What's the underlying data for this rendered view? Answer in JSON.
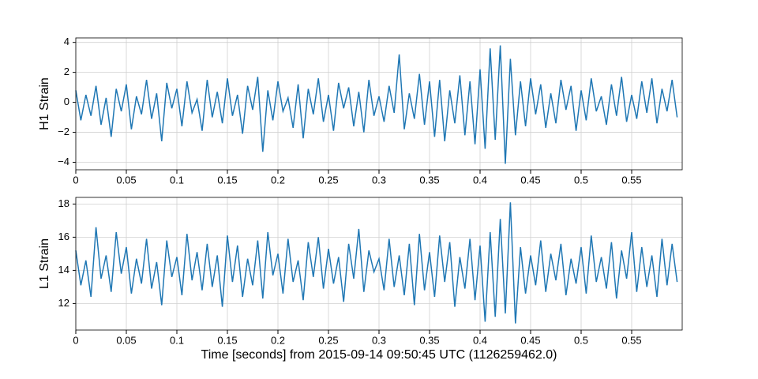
{
  "chart_data": [
    {
      "type": "line",
      "ylabel": "H1 Strain",
      "color": "#1f77b4",
      "grid": true,
      "xlim": [
        0,
        0.6
      ],
      "xticks": [
        0,
        0.05,
        0.1,
        0.15,
        0.2,
        0.25,
        0.3,
        0.35,
        0.4,
        0.45,
        0.5,
        0.55
      ],
      "ylim": [
        -4.5,
        4.3
      ],
      "yticks": [
        {
          "value": -4,
          "label": "−4"
        },
        {
          "value": -2,
          "label": "−2"
        },
        0,
        2,
        4
      ],
      "x": [
        0,
        0.005,
        0.01,
        0.015,
        0.02,
        0.025,
        0.03,
        0.035,
        0.04,
        0.045,
        0.05,
        0.055,
        0.06,
        0.065,
        0.07,
        0.075,
        0.08,
        0.085,
        0.09,
        0.095,
        0.1,
        0.105,
        0.11,
        0.115,
        0.12,
        0.125,
        0.13,
        0.135,
        0.14,
        0.145,
        0.15,
        0.155,
        0.16,
        0.165,
        0.17,
        0.175,
        0.18,
        0.185,
        0.19,
        0.195,
        0.2,
        0.205,
        0.21,
        0.215,
        0.22,
        0.225,
        0.23,
        0.235,
        0.24,
        0.245,
        0.25,
        0.255,
        0.26,
        0.265,
        0.27,
        0.275,
        0.28,
        0.285,
        0.29,
        0.295,
        0.3,
        0.305,
        0.31,
        0.315,
        0.32,
        0.325,
        0.33,
        0.335,
        0.34,
        0.345,
        0.35,
        0.355,
        0.36,
        0.365,
        0.37,
        0.375,
        0.38,
        0.385,
        0.39,
        0.395,
        0.4,
        0.405,
        0.41,
        0.415,
        0.42,
        0.425,
        0.43,
        0.435,
        0.44,
        0.445,
        0.45,
        0.455,
        0.46,
        0.465,
        0.47,
        0.475,
        0.48,
        0.485,
        0.49,
        0.495,
        0.5,
        0.505,
        0.51,
        0.515,
        0.52,
        0.525,
        0.53,
        0.535,
        0.54,
        0.545,
        0.55,
        0.555,
        0.56,
        0.565,
        0.57,
        0.575,
        0.58,
        0.585,
        0.59,
        0.595
      ],
      "values": [
        0.8,
        -1.2,
        0.5,
        -0.9,
        1.1,
        -1.5,
        0.3,
        -2.3,
        0.9,
        -0.6,
        1.2,
        -1.8,
        0.4,
        -0.8,
        1.5,
        -1.1,
        0.6,
        -2.6,
        1.3,
        -0.4,
        0.9,
        -1.6,
        1.4,
        -0.7,
        0.2,
        -1.9,
        1.5,
        -1.0,
        0.7,
        -1.4,
        1.6,
        -0.9,
        0.5,
        -2.1,
        1.1,
        -0.5,
        1.7,
        -3.3,
        0.8,
        -1.2,
        1.4,
        -0.6,
        0.3,
        -1.7,
        1.2,
        -2.4,
        0.9,
        -0.8,
        1.6,
        -1.3,
        0.5,
        -1.9,
        1.3,
        -0.4,
        1.0,
        -1.6,
        0.7,
        -2.0,
        1.5,
        -0.9,
        0.4,
        -1.3,
        1.1,
        -0.7,
        3.2,
        -1.8,
        0.6,
        -1.1,
        1.9,
        -1.5,
        1.4,
        -2.3,
        1.5,
        -2.6,
        0.8,
        -1.4,
        1.8,
        -2.2,
        1.4,
        -2.8,
        2.2,
        -3.1,
        3.6,
        -2.5,
        3.8,
        -4.1,
        2.9,
        -2.2,
        1.4,
        -1.6,
        1.6,
        -0.8,
        1.2,
        -1.7,
        0.6,
        -1.4,
        1.5,
        -0.5,
        1.1,
        -1.9,
        0.8,
        -1.2,
        1.6,
        -0.6,
        0.4,
        -1.5,
        1.2,
        -0.9,
        1.7,
        -1.3,
        0.5,
        -1.1,
        1.4,
        -0.7,
        1.6,
        -1.4,
        0.9,
        -0.6,
        1.5,
        -1.0
      ]
    },
    {
      "type": "line",
      "ylabel": "L1 Strain",
      "xlabel": "Time [seconds] from 2015-09-14 09:50:45 UTC (1126259462.0)",
      "color": "#1f77b4",
      "grid": true,
      "xlim": [
        0,
        0.6
      ],
      "xticks": [
        0,
        0.05,
        0.1,
        0.15,
        0.2,
        0.25,
        0.3,
        0.35,
        0.4,
        0.45,
        0.5,
        0.55
      ],
      "ylim": [
        10.4,
        18.4
      ],
      "yticks": [
        12,
        14,
        16,
        18
      ],
      "x": [
        0,
        0.005,
        0.01,
        0.015,
        0.02,
        0.025,
        0.03,
        0.035,
        0.04,
        0.045,
        0.05,
        0.055,
        0.06,
        0.065,
        0.07,
        0.075,
        0.08,
        0.085,
        0.09,
        0.095,
        0.1,
        0.105,
        0.11,
        0.115,
        0.12,
        0.125,
        0.13,
        0.135,
        0.14,
        0.145,
        0.15,
        0.155,
        0.16,
        0.165,
        0.17,
        0.175,
        0.18,
        0.185,
        0.19,
        0.195,
        0.2,
        0.205,
        0.21,
        0.215,
        0.22,
        0.225,
        0.23,
        0.235,
        0.24,
        0.245,
        0.25,
        0.255,
        0.26,
        0.265,
        0.27,
        0.275,
        0.28,
        0.285,
        0.29,
        0.295,
        0.3,
        0.305,
        0.31,
        0.315,
        0.32,
        0.325,
        0.33,
        0.335,
        0.34,
        0.345,
        0.35,
        0.355,
        0.36,
        0.365,
        0.37,
        0.375,
        0.38,
        0.385,
        0.39,
        0.395,
        0.4,
        0.405,
        0.41,
        0.415,
        0.42,
        0.425,
        0.43,
        0.435,
        0.44,
        0.445,
        0.45,
        0.455,
        0.46,
        0.465,
        0.47,
        0.475,
        0.48,
        0.485,
        0.49,
        0.495,
        0.5,
        0.505,
        0.51,
        0.515,
        0.52,
        0.525,
        0.53,
        0.535,
        0.54,
        0.545,
        0.55,
        0.555,
        0.56,
        0.565,
        0.57,
        0.575,
        0.58,
        0.585,
        0.59,
        0.595
      ],
      "values": [
        15.2,
        13.1,
        14.6,
        12.4,
        16.6,
        13.5,
        14.9,
        12.7,
        16.3,
        13.8,
        15.4,
        12.6,
        14.7,
        13.2,
        15.9,
        12.9,
        14.5,
        11.9,
        15.8,
        13.6,
        14.8,
        12.5,
        16.2,
        13.4,
        15.1,
        12.8,
        15.6,
        13.0,
        14.9,
        11.8,
        16.1,
        13.3,
        15.5,
        12.4,
        14.7,
        13.1,
        15.8,
        12.3,
        16.3,
        13.7,
        15.0,
        12.6,
        15.9,
        13.3,
        14.6,
        12.2,
        15.7,
        13.6,
        16.0,
        12.9,
        15.3,
        13.2,
        14.8,
        12.1,
        15.6,
        13.5,
        16.5,
        12.7,
        15.2,
        13.9,
        14.7,
        12.8,
        15.9,
        13.0,
        14.9,
        12.5,
        15.6,
        11.9,
        16.2,
        12.8,
        15.1,
        12.4,
        16.1,
        13.3,
        15.7,
        11.8,
        14.8,
        12.9,
        15.9,
        12.2,
        15.5,
        10.9,
        16.3,
        11.2,
        17.1,
        11.4,
        18.1,
        10.8,
        15.4,
        12.6,
        14.9,
        13.1,
        15.8,
        12.7,
        15.0,
        13.4,
        15.6,
        12.5,
        14.7,
        13.2,
        15.4,
        12.6,
        16.1,
        13.3,
        14.8,
        12.9,
        15.7,
        12.3,
        15.2,
        13.5,
        16.3,
        12.7,
        15.4,
        13.0,
        14.9,
        12.4,
        15.9,
        13.1,
        15.6,
        13.3
      ]
    }
  ]
}
